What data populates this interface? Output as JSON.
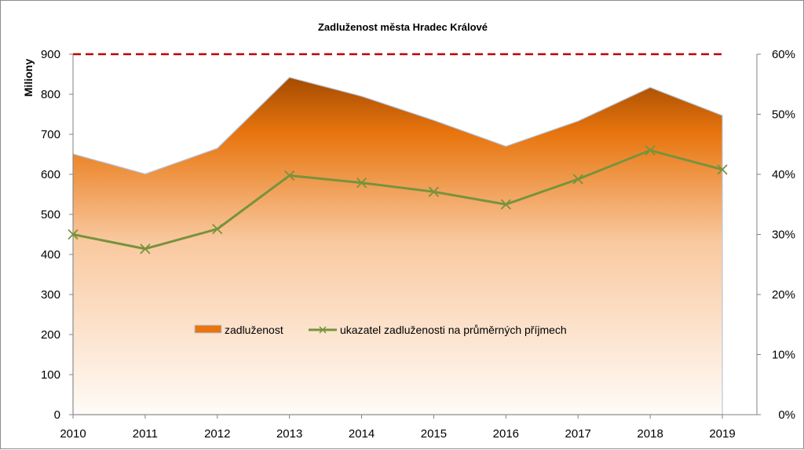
{
  "chart_data": {
    "type": "area",
    "title": "Zadluženost města Hradec Králové",
    "ylabel": "Miliony",
    "y2label": "",
    "categories": [
      "2010",
      "2011",
      "2012",
      "2013",
      "2014",
      "2015",
      "2016",
      "2017",
      "2018",
      "2019"
    ],
    "ylim": [
      0,
      900
    ],
    "yticks": [
      "0",
      "100",
      "200",
      "300",
      "400",
      "500",
      "600",
      "700",
      "800",
      "900"
    ],
    "y2lim": [
      0,
      60
    ],
    "y2ticks": [
      "0%",
      "10%",
      "20%",
      "30%",
      "40%",
      "50%",
      "60%"
    ],
    "series": [
      {
        "name": "zadluženost",
        "type": "area",
        "axis": "left",
        "values": [
          651,
          601,
          665,
          842,
          795,
          735,
          670,
          733,
          817,
          747
        ]
      },
      {
        "name": "ukazatel zadluženosti na průměrných příjmech",
        "type": "line",
        "axis": "right",
        "values": [
          30.0,
          27.6,
          30.9,
          39.8,
          38.6,
          37.1,
          35.0,
          39.2,
          44.0,
          40.8
        ]
      }
    ],
    "reference_line": {
      "value": 900,
      "axis": "left",
      "style": "dashed"
    },
    "legend_position": "center",
    "colors": {
      "area_top": "#a34a00",
      "area_mid": "#e8750e",
      "area_light": "#f9c9a0",
      "area_bottom": "#fffbf7",
      "area_edge": "#b8c8e0",
      "line": "#77933c",
      "reference": "#c00000"
    }
  }
}
